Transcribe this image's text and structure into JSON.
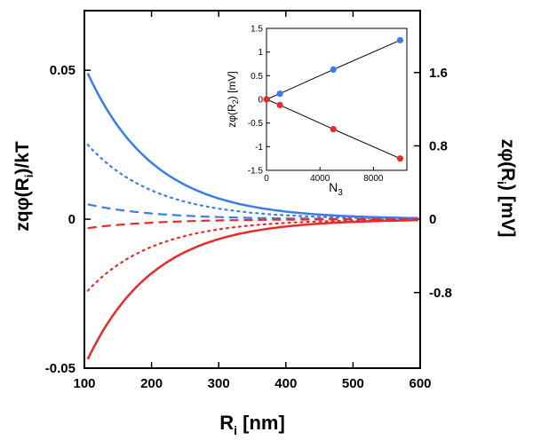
{
  "chart_data": [
    {
      "type": "line",
      "role": "main",
      "xlabel": "R",
      "xlabel_sub": "i",
      "xlabel_unit": " [nm]",
      "ylabel_left": "zqφ(R",
      "ylabel_left_sub": "i",
      "ylabel_left_tail": ")/kT",
      "ylabel_right": "zφ(R",
      "ylabel_right_sub": "i",
      "ylabel_right_tail": ") [mV]",
      "xlim": [
        100,
        600
      ],
      "ylim": [
        -0.05,
        0.07
      ],
      "x_ticks": [
        100,
        200,
        300,
        400,
        500,
        600
      ],
      "y_ticks": [
        -0.05,
        0,
        0.05
      ],
      "y_tick_labels": [
        "-0.05",
        "0",
        "0.05"
      ],
      "y2_ticks": [
        -0.8,
        0,
        0.8,
        1.6
      ],
      "y2_tick_labels": [
        "-0.8",
        "0",
        "0.8",
        "1.6"
      ],
      "y2_scale_mV_per_unit": 32.5,
      "series": [
        {
          "name": "blue-solid",
          "color": "#3a7de8",
          "style": "solid",
          "A": 0.049,
          "decay_nm": 100
        },
        {
          "name": "blue-dotted",
          "color": "#3a7de8",
          "style": "dotted",
          "A": 0.025,
          "decay_nm": 100
        },
        {
          "name": "blue-dashed",
          "color": "#3a7de8",
          "style": "dashed",
          "A": 0.005,
          "decay_nm": 100
        },
        {
          "name": "red-dashed",
          "color": "#e52b2b",
          "style": "dashed",
          "A": -0.003,
          "decay_nm": 100
        },
        {
          "name": "red-dotted",
          "color": "#e52b2b",
          "style": "dotted",
          "A": -0.024,
          "decay_nm": 100
        },
        {
          "name": "red-solid",
          "color": "#e52b2b",
          "style": "solid",
          "A": -0.047,
          "decay_nm": 100
        }
      ]
    },
    {
      "type": "scatter",
      "role": "inset",
      "xlabel": "N",
      "xlabel_sub": "3",
      "ylabel": "zφ(R",
      "ylabel_sub": "2",
      "ylabel_tail": ") [mV]",
      "xlim": [
        0,
        10500
      ],
      "ylim": [
        -1.5,
        1.5
      ],
      "x_ticks": [
        0,
        4000,
        8000
      ],
      "y_ticks": [
        -1.5,
        -1,
        -0.5,
        0,
        0.5,
        1,
        1.5
      ],
      "y_tick_labels": [
        "-1.5",
        "-1",
        "-0.5",
        "0",
        "0.5",
        "1",
        "1.5"
      ],
      "series": [
        {
          "name": "blue",
          "color": "#3a7de8",
          "x": [
            0,
            1000,
            5000,
            10000
          ],
          "y": [
            0,
            0.12,
            0.63,
            1.25
          ]
        },
        {
          "name": "red",
          "color": "#e52b2b",
          "x": [
            0,
            1000,
            5000,
            10000
          ],
          "y": [
            0,
            -0.12,
            -0.63,
            -1.25
          ]
        }
      ]
    }
  ]
}
